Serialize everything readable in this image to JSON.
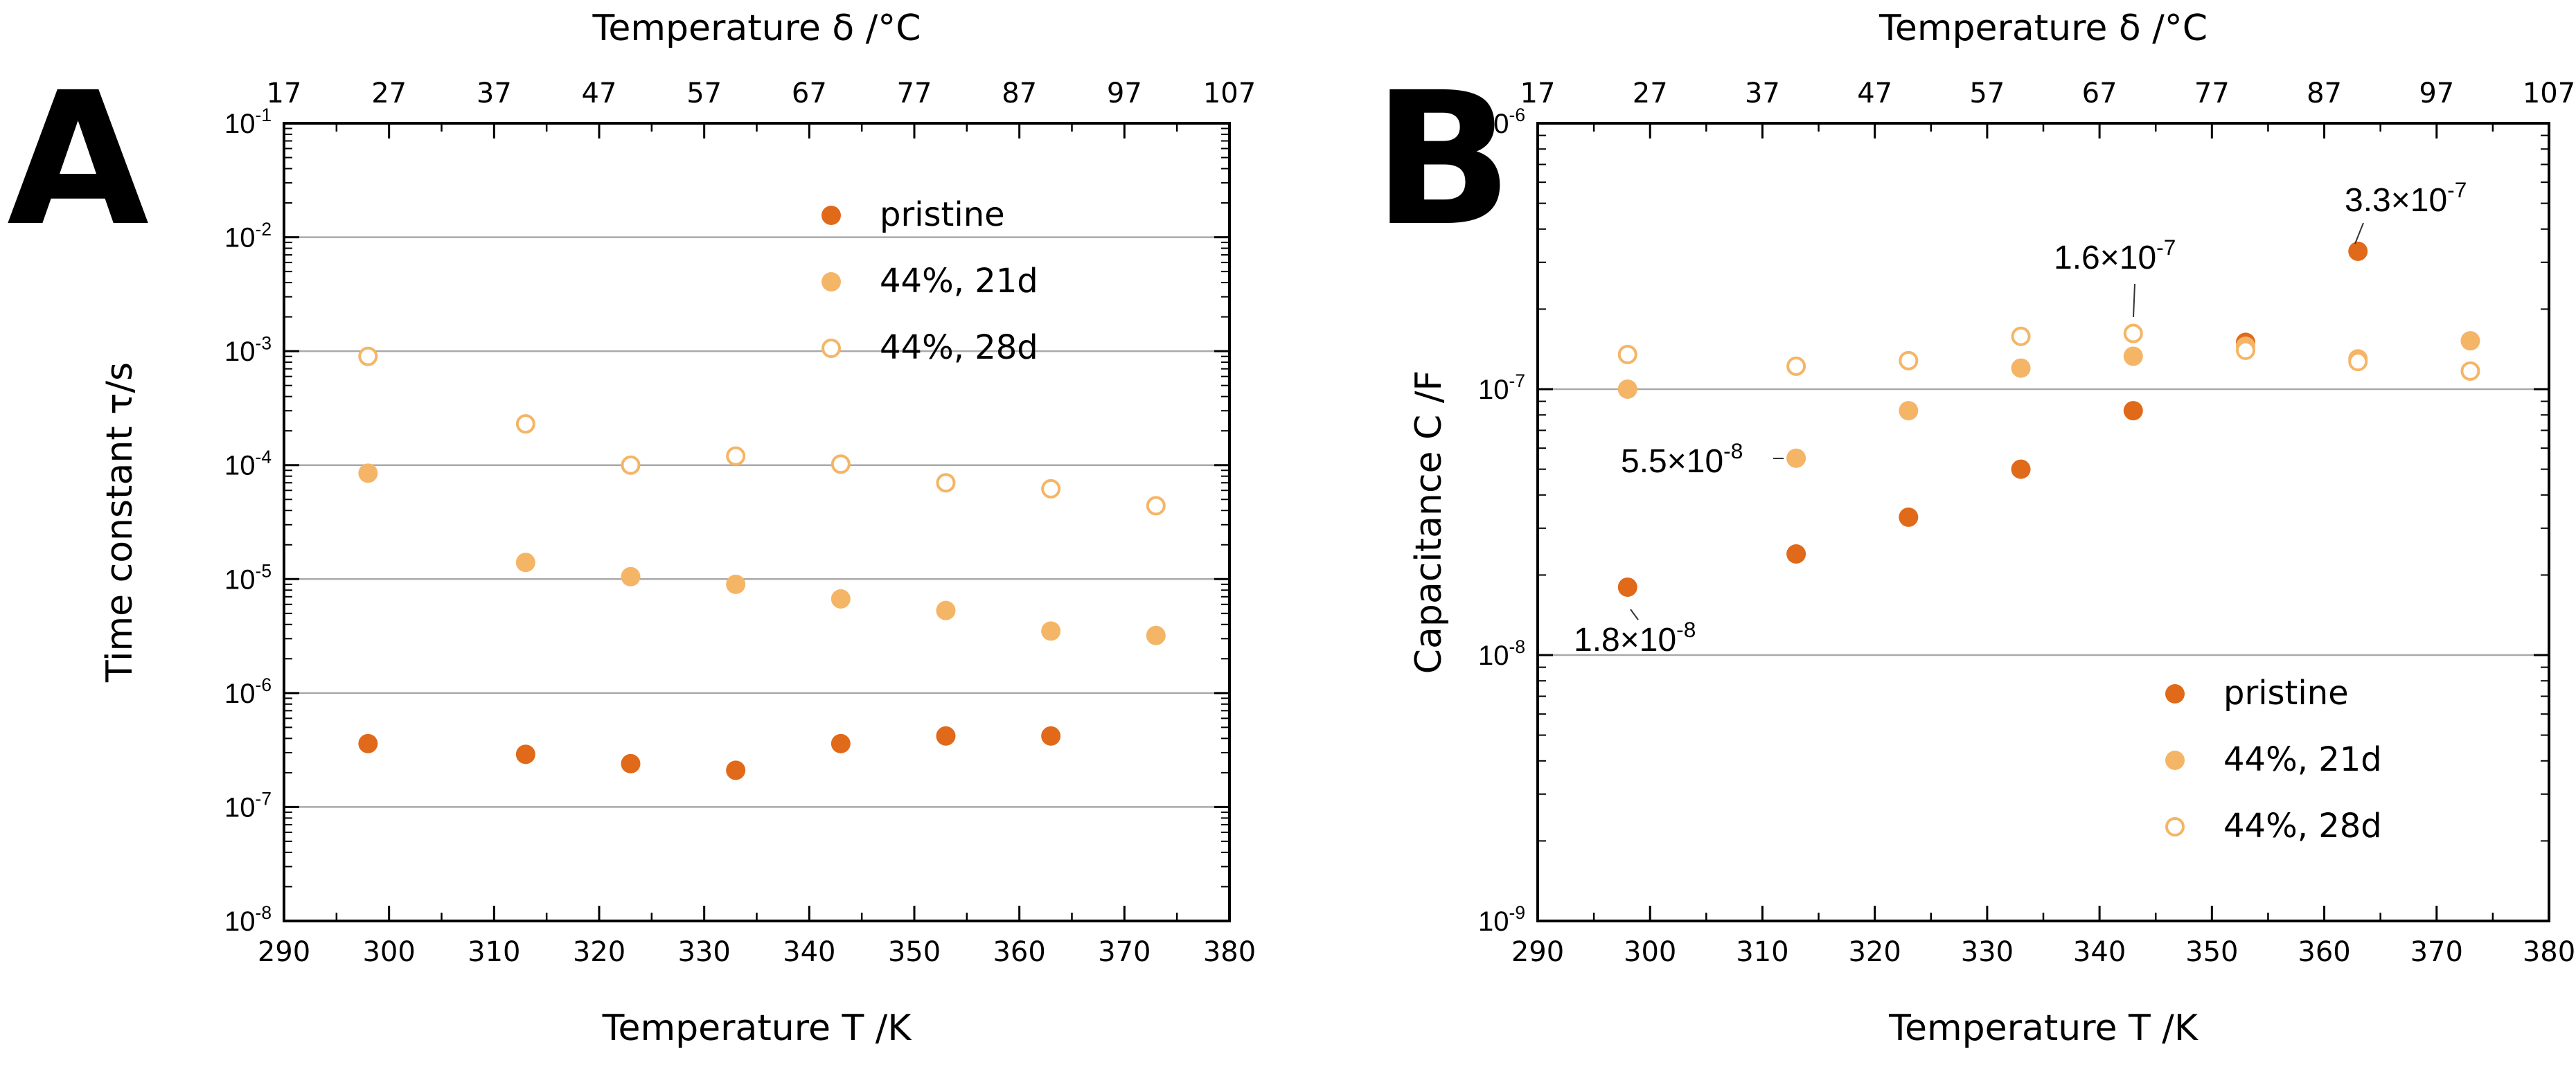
{
  "colors": {
    "pristine": "#e0691a",
    "aged_21d": "#f5b566",
    "aged_28d": "#f5b566",
    "gridline": "#a9a9a9",
    "axis": "#000000"
  },
  "chart_data": [
    {
      "panel": "A",
      "type": "scatter",
      "xlabel": "Temperature T /K",
      "ylabel": "Time constant τ/s",
      "top_xlabel": "Temperature δ /°C",
      "xlim": [
        290,
        380
      ],
      "ylim": [
        1e-08,
        0.1
      ],
      "yscale": "log",
      "x_ticks": [
        "290",
        "300",
        "310",
        "320",
        "330",
        "340",
        "350",
        "360",
        "370",
        "380"
      ],
      "top_ticks": [
        "17",
        "27",
        "37",
        "47",
        "57",
        "67",
        "77",
        "87",
        "97",
        "107"
      ],
      "y_ticks": [
        {
          "base": "10",
          "exp": "-8"
        },
        {
          "base": "10",
          "exp": "-7"
        },
        {
          "base": "10",
          "exp": "-6"
        },
        {
          "base": "10",
          "exp": "-5"
        },
        {
          "base": "10",
          "exp": "-4"
        },
        {
          "base": "10",
          "exp": "-3"
        },
        {
          "base": "10",
          "exp": "-2"
        },
        {
          "base": "10",
          "exp": "-1"
        }
      ],
      "gridlines_y": [
        1e-07,
        1e-06,
        1e-05,
        0.0001,
        0.001,
        0.01
      ],
      "legend": [
        "pristine",
        "44%, 21d",
        "44%, 28d"
      ],
      "legend_position": "top-right",
      "series": [
        {
          "name": "pristine",
          "marker": "filled",
          "color": "#e0691a",
          "x": [
            298,
            313,
            323,
            333,
            343,
            353,
            363
          ],
          "y": [
            3.6e-07,
            2.9e-07,
            2.4e-07,
            2.1e-07,
            3.6e-07,
            4.2e-07,
            4.2e-07
          ]
        },
        {
          "name": "44%, 21d",
          "marker": "filled",
          "color": "#f5b566",
          "x": [
            298,
            313,
            323,
            333,
            343,
            353,
            363,
            373
          ],
          "y": [
            8.5e-05,
            1.4e-05,
            1.05e-05,
            9e-06,
            6.7e-06,
            5.3e-06,
            3.5e-06,
            3.2e-06
          ]
        },
        {
          "name": "44%, 28d",
          "marker": "open",
          "color": "#f5b566",
          "x": [
            298,
            313,
            323,
            333,
            343,
            353,
            363,
            373
          ],
          "y": [
            0.0009,
            0.00023,
            0.0001,
            0.00012,
            0.000102,
            7e-05,
            6.2e-05,
            4.4e-05
          ]
        }
      ],
      "annotations": []
    },
    {
      "panel": "B",
      "type": "scatter",
      "xlabel": "Temperature T /K",
      "ylabel": "Capacitance C /F",
      "top_xlabel": "Temperature δ /°C",
      "xlim": [
        290,
        380
      ],
      "ylim": [
        1e-09,
        1e-06
      ],
      "yscale": "log",
      "x_ticks": [
        "290",
        "300",
        "310",
        "320",
        "330",
        "340",
        "350",
        "360",
        "370",
        "380"
      ],
      "top_ticks": [
        "17",
        "27",
        "37",
        "47",
        "57",
        "67",
        "77",
        "87",
        "97",
        "107"
      ],
      "y_ticks": [
        {
          "base": "10",
          "exp": "-9"
        },
        {
          "base": "10",
          "exp": "-8"
        },
        {
          "base": "10",
          "exp": "-7"
        },
        {
          "base": "10",
          "exp": "-6"
        }
      ],
      "gridlines_y": [
        1e-08,
        1e-07
      ],
      "legend": [
        "pristine",
        "44%, 21d",
        "44%, 28d"
      ],
      "legend_position": "bottom-right",
      "series": [
        {
          "name": "pristine",
          "marker": "filled",
          "color": "#e0691a",
          "x": [
            298,
            313,
            323,
            333,
            343,
            353,
            363
          ],
          "y": [
            1.8e-08,
            2.4e-08,
            3.3e-08,
            5e-08,
            8.3e-08,
            1.5e-07,
            3.3e-07
          ]
        },
        {
          "name": "44%, 21d",
          "marker": "filled",
          "color": "#f5b566",
          "x": [
            298,
            313,
            323,
            333,
            343,
            353,
            363,
            373
          ],
          "y": [
            1e-07,
            5.5e-08,
            8.3e-08,
            1.2e-07,
            1.33e-07,
            1.45e-07,
            1.3e-07,
            1.52e-07
          ]
        },
        {
          "name": "44%, 28d",
          "marker": "open",
          "color": "#f5b566",
          "x": [
            298,
            313,
            323,
            333,
            343,
            353,
            363,
            373
          ],
          "y": [
            1.35e-07,
            1.22e-07,
            1.28e-07,
            1.58e-07,
            1.62e-07,
            1.4e-07,
            1.27e-07,
            1.17e-07
          ]
        }
      ],
      "annotations": [
        {
          "mantissa": "3.3×10",
          "exp": "-7",
          "target_x": 363,
          "target_y": 3.3e-07
        },
        {
          "mantissa": "1.6×10",
          "exp": "-7",
          "target_x": 343,
          "target_y": 1.62e-07
        },
        {
          "mantissa": "5.5×10",
          "exp": "-8",
          "target_x": 313,
          "target_y": 5.5e-08
        },
        {
          "mantissa": "1.8×10",
          "exp": "-8",
          "target_x": 298,
          "target_y": 1.8e-08
        }
      ]
    }
  ]
}
